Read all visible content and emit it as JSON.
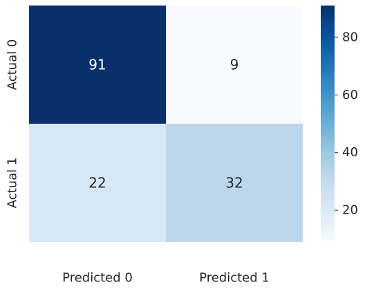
{
  "chart_data": {
    "type": "heatmap",
    "title": "",
    "xlabel": "",
    "ylabel": "",
    "x_categories": [
      "Predicted 0",
      "Predicted 1"
    ],
    "y_categories": [
      "Actual 0",
      "Actual 1"
    ],
    "values": [
      [
        91,
        9
      ],
      [
        22,
        32
      ]
    ],
    "colormap": "Blues",
    "colorbar": {
      "range": [
        9,
        91
      ],
      "ticks": [
        20,
        40,
        60,
        80
      ]
    },
    "grid": false,
    "legend": "colorbar-right"
  }
}
